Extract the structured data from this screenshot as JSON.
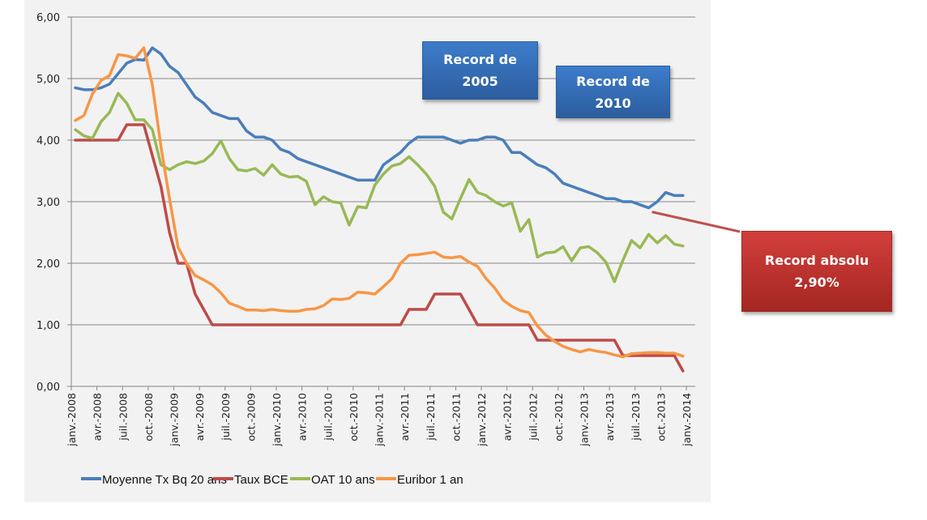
{
  "chart_data": {
    "type": "line",
    "title": "",
    "xlabel": "",
    "ylabel": "",
    "ylim": [
      0,
      6
    ],
    "yticks": [
      "0,00",
      "1,00",
      "2,00",
      "3,00",
      "4,00",
      "5,00",
      "6,00"
    ],
    "grid": true,
    "legend_position": "bottom",
    "xtick_labels": [
      "janv.-2008",
      "avr.-2008",
      "juil.-2008",
      "oct.-2008",
      "janv.-2009",
      "avr.-2009",
      "juil.-2009",
      "oct.-2009",
      "janv.-2010",
      "avr.-2010",
      "juil.-2010",
      "oct.-2010",
      "janv.-2011",
      "avr.-2011",
      "juil.-2011",
      "oct.-2011",
      "janv.-2012",
      "avr.-2012",
      "juil.-2012",
      "oct.-2012",
      "janv.-2013",
      "avr.-2013",
      "juil.-2013",
      "oct.-2013",
      "janv.-2014"
    ],
    "x_start": "2008-01",
    "x_end": "2013-12",
    "x_frequency": "monthly",
    "series": [
      {
        "name": "Moyenne Tx Bq 20 ans",
        "color": "#4a7ebb",
        "values": [
          4.85,
          4.82,
          4.82,
          4.85,
          4.91,
          5.08,
          5.25,
          5.31,
          5.3,
          5.5,
          5.4,
          5.2,
          5.1,
          4.9,
          4.7,
          4.6,
          4.45,
          4.4,
          4.35,
          4.35,
          4.15,
          4.05,
          4.05,
          4.0,
          3.85,
          3.8,
          3.7,
          3.65,
          3.6,
          3.55,
          3.5,
          3.45,
          3.4,
          3.35,
          3.35,
          3.35,
          3.6,
          3.7,
          3.8,
          3.95,
          4.05,
          4.05,
          4.05,
          4.05,
          4.0,
          3.95,
          4.0,
          4.0,
          4.05,
          4.05,
          4.0,
          3.8,
          3.8,
          3.7,
          3.6,
          3.55,
          3.45,
          3.3,
          3.25,
          3.2,
          3.15,
          3.1,
          3.05,
          3.05,
          3.0,
          3.0,
          2.95,
          2.9,
          3.0,
          3.15,
          3.1,
          3.1
        ]
      },
      {
        "name": "Taux BCE",
        "color": "#be4b48",
        "values": [
          4,
          4,
          4,
          4,
          4,
          4,
          4.25,
          4.25,
          4.25,
          3.75,
          3.25,
          2.5,
          2,
          2,
          1.5,
          1.25,
          1,
          1,
          1,
          1,
          1,
          1,
          1,
          1,
          1,
          1,
          1,
          1,
          1,
          1,
          1,
          1,
          1,
          1,
          1,
          1,
          1,
          1,
          1,
          1.25,
          1.25,
          1.25,
          1.5,
          1.5,
          1.5,
          1.5,
          1.25,
          1,
          1,
          1,
          1,
          1,
          1,
          1,
          0.75,
          0.75,
          0.75,
          0.75,
          0.75,
          0.75,
          0.75,
          0.75,
          0.75,
          0.75,
          0.5,
          0.5,
          0.5,
          0.5,
          0.5,
          0.5,
          0.5,
          0.25
        ]
      },
      {
        "name": "OAT 10 ans",
        "color": "#98b954",
        "values": [
          4.17,
          4.07,
          4.03,
          4.3,
          4.45,
          4.76,
          4.6,
          4.33,
          4.33,
          4.17,
          3.6,
          3.52,
          3.6,
          3.65,
          3.62,
          3.66,
          3.78,
          3.99,
          3.7,
          3.52,
          3.5,
          3.54,
          3.43,
          3.6,
          3.45,
          3.4,
          3.41,
          3.33,
          2.95,
          3.08,
          3.0,
          2.98,
          2.62,
          2.92,
          2.9,
          3.27,
          3.45,
          3.58,
          3.62,
          3.73,
          3.6,
          3.45,
          3.25,
          2.83,
          2.72,
          3.05,
          3.36,
          3.15,
          3.1,
          3.0,
          2.93,
          2.98,
          2.52,
          2.71,
          2.1,
          2.17,
          2.18,
          2.27,
          2.04,
          2.25,
          2.27,
          2.17,
          2.02,
          1.7,
          2.05,
          2.37,
          2.25,
          2.47,
          2.33,
          2.45,
          2.31,
          2.28
        ]
      },
      {
        "name": "Euribor 1 an",
        "color": "#f79646",
        "values": [
          4.32,
          4.4,
          4.75,
          4.97,
          5.05,
          5.39,
          5.37,
          5.33,
          5.5,
          4.9,
          3.9,
          3.05,
          2.26,
          2.0,
          1.8,
          1.73,
          1.65,
          1.52,
          1.35,
          1.3,
          1.24,
          1.24,
          1.23,
          1.25,
          1.23,
          1.22,
          1.22,
          1.25,
          1.26,
          1.31,
          1.42,
          1.41,
          1.43,
          1.53,
          1.52,
          1.5,
          1.62,
          1.75,
          2.0,
          2.13,
          2.14,
          2.16,
          2.18,
          2.1,
          2.09,
          2.11,
          2.02,
          1.95,
          1.75,
          1.6,
          1.4,
          1.3,
          1.23,
          1.2,
          0.98,
          0.83,
          0.73,
          0.65,
          0.6,
          0.56,
          0.6,
          0.57,
          0.55,
          0.51,
          0.48,
          0.53,
          0.54,
          0.55,
          0.55,
          0.54,
          0.54,
          0.49
        ]
      }
    ],
    "annotations": [
      {
        "text_line1": "Record de",
        "text_line2": "2005",
        "style": "blue-box"
      },
      {
        "text_line1": "Record de",
        "text_line2": "2010",
        "style": "blue-box"
      },
      {
        "text_line1": "Record absolu",
        "text_line2": "2,90%",
        "style": "red-box",
        "points_to_series": "Moyenne Tx Bq 20 ans",
        "points_to_value": 2.9,
        "points_to_month_index": 67
      }
    ]
  },
  "annotation_colors": {
    "blue_top": "#3d7ccb",
    "blue_bottom": "#2c5d9e",
    "red_top": "#d23f3b",
    "red_bottom": "#a42622",
    "leader_line": "#c0504d"
  }
}
